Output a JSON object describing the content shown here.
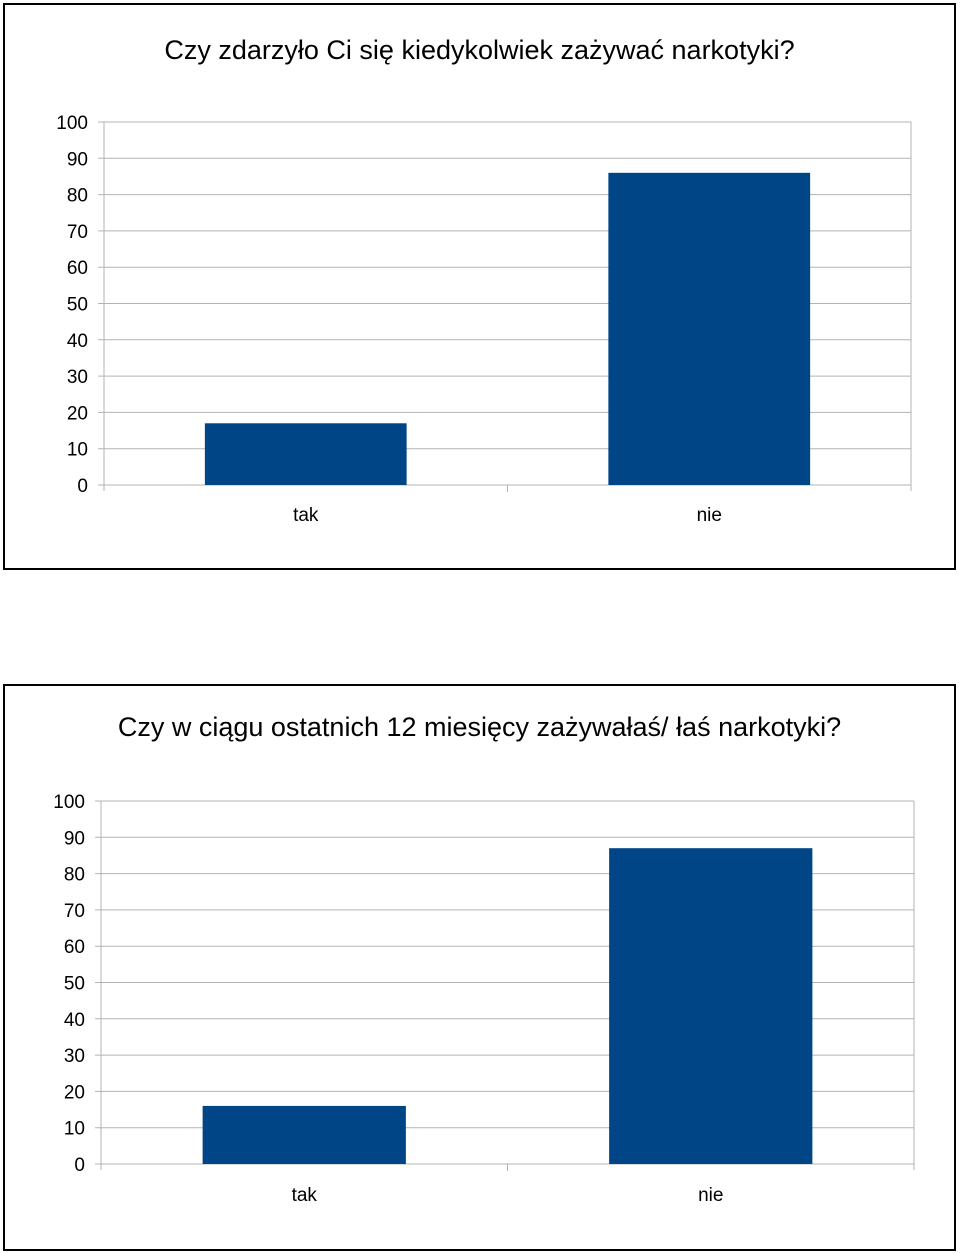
{
  "charts": [
    {
      "title": "Czy zdarzyło Ci się kiedykolwiek zażywać narkotyki?",
      "chart_data": {
        "type": "bar",
        "categories": [
          "tak",
          "nie"
        ],
        "values": [
          17,
          86
        ],
        "ylim": [
          0,
          100
        ],
        "yticks": [
          0,
          10,
          20,
          30,
          40,
          50,
          60,
          70,
          80,
          90,
          100
        ],
        "grid": true,
        "bar_color": "#004586"
      }
    },
    {
      "title": "Czy w ciągu ostatnich 12 miesięcy zażywałaś/ łaś narkotyki?",
      "chart_data": {
        "type": "bar",
        "categories": [
          "tak",
          "nie"
        ],
        "values": [
          16,
          87
        ],
        "ylim": [
          0,
          100
        ],
        "yticks": [
          0,
          10,
          20,
          30,
          40,
          50,
          60,
          70,
          80,
          90,
          100
        ],
        "grid": true,
        "bar_color": "#004586"
      }
    }
  ]
}
